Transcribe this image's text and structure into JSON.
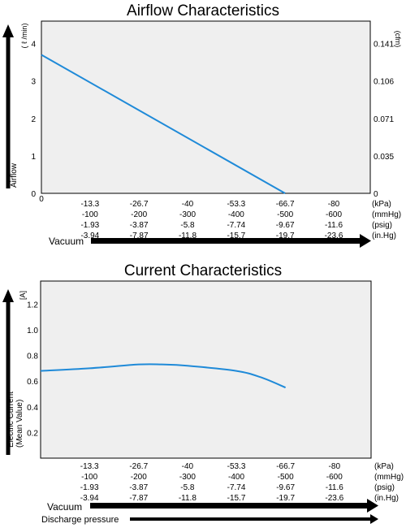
{
  "colors": {
    "plot_bg": "#efefef",
    "series": "#1f8ad8",
    "arrow": "#000000"
  },
  "chart_data": [
    {
      "type": "line",
      "title": "Airflow Characteristics",
      "ylabel": "Airflow",
      "y_unit": "( ℓ /min)",
      "y2_unit": "(cfm)",
      "xlabel": "Vacuum",
      "ylim": [
        0,
        4.6
      ],
      "y_ticks": [
        "0",
        "1",
        "2",
        "3",
        "4"
      ],
      "y2_ticks": [
        {
          "at": 0,
          "label": "0"
        },
        {
          "at": 1,
          "label": "0.035"
        },
        {
          "at": 2,
          "label": "0.071"
        },
        {
          "at": 3,
          "label": "0.106"
        },
        {
          "at": 4,
          "label": "0.141"
        }
      ],
      "x_origin_label": "0",
      "x_rows": [
        {
          "unit": "(kPa)",
          "ticks": [
            "-13.3",
            "-26.7",
            "-40",
            "-53.3",
            "-66.7",
            "-80"
          ]
        },
        {
          "unit": "(mmHg)",
          "ticks": [
            "-100",
            "-200",
            "-300",
            "-400",
            "-500",
            "-600"
          ]
        },
        {
          "unit": "(psig)",
          "ticks": [
            "-1.93",
            "-3.87",
            "-5.8",
            "-7.74",
            "-9.67",
            "-11.6"
          ]
        },
        {
          "unit": "(in.Hg)",
          "ticks": [
            "-3.94",
            "-7.87",
            "-11.8",
            "-15.7",
            "-19.7",
            "-23.6"
          ]
        }
      ],
      "grid": false,
      "series": [
        {
          "x_kpa": [
            0,
            -66.7
          ],
          "y": [
            3.7,
            0
          ]
        }
      ]
    },
    {
      "type": "line",
      "title": "Current Characteristics",
      "ylabel": "Electric Current\n(Mean Value)",
      "y_unit": "[A]",
      "xlabel": "Vacuum",
      "xlabel2": "Discharge pressure",
      "ylim": [
        0,
        1.38
      ],
      "y_ticks": [
        "0.2",
        "0.4",
        "0.6",
        "0.8",
        "1.0",
        "1.2"
      ],
      "x_rows": [
        {
          "unit": "(kPa)",
          "ticks": [
            "-13.3",
            "-26.7",
            "-40",
            "-53.3",
            "-66.7",
            "-80"
          ]
        },
        {
          "unit": "(mmHg)",
          "ticks": [
            "-100",
            "-200",
            "-300",
            "-400",
            "-500",
            "-600"
          ]
        },
        {
          "unit": "(psig)",
          "ticks": [
            "-1.93",
            "-3.87",
            "-5.8",
            "-7.74",
            "-9.67",
            "-11.6"
          ]
        },
        {
          "unit": "(in.Hg)",
          "ticks": [
            "-3.94",
            "-7.87",
            "-11.8",
            "-15.7",
            "-19.7",
            "-23.6"
          ]
        }
      ],
      "grid": false,
      "series": [
        {
          "x_kpa": [
            0,
            -13.3,
            -26.7,
            -33,
            -40,
            -53.3,
            -60,
            -66.7
          ],
          "y": [
            0.68,
            0.7,
            0.73,
            0.73,
            0.72,
            0.68,
            0.63,
            0.55
          ]
        }
      ]
    }
  ]
}
